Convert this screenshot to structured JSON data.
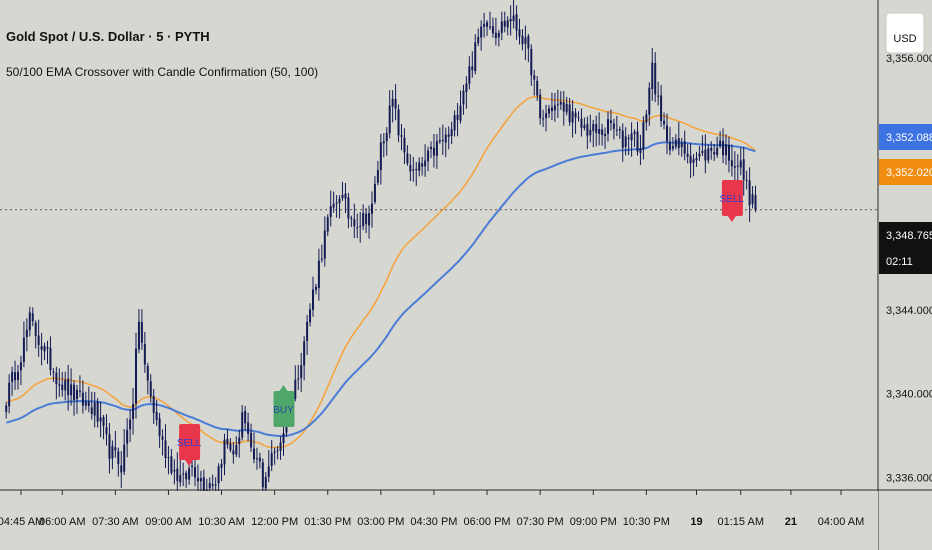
{
  "header": {
    "title": "Gold Spot / U.S. Dollar · 5 · PYTH",
    "indicator": "50/100 EMA Crossover with Candle Confirmation (50, 100)"
  },
  "currency_button": "USD",
  "colors": {
    "background": "#d7d7d2",
    "candle": "#131b54",
    "ema50": "#f5a238",
    "ema100": "#4a7cd6",
    "buy_signal": "#4fa86a",
    "sell_signal": "#e8364b",
    "last_price_tag": "#111111"
  },
  "price_tags": [
    {
      "value": "3,352.088",
      "series": "ema100",
      "color": "#3d73e0"
    },
    {
      "value": "3,352.020",
      "series": "ema50",
      "color": "#f08c10"
    },
    {
      "value": "3,348.765",
      "series": "last",
      "color": "#111111",
      "countdown": "02:11"
    }
  ],
  "chart_data": {
    "type": "candlestick",
    "symbol": "Gold Spot / U.S. Dollar",
    "interval_minutes": 5,
    "ylim": [
      3335.6,
      3358.0
    ],
    "y_ticks": [
      {
        "value": 3336.0,
        "label": "3,336.000"
      },
      {
        "value": 3340.0,
        "label": "3,340.000"
      },
      {
        "value": 3344.0,
        "label": "3,344.000"
      },
      {
        "value": 3356.0,
        "label": "3,356.000"
      }
    ],
    "x_ticks": [
      {
        "index": 5,
        "label": "04:45 AM"
      },
      {
        "index": 19,
        "label": "06:00 AM"
      },
      {
        "index": 37,
        "label": "07:30 AM"
      },
      {
        "index": 55,
        "label": "09:00 AM"
      },
      {
        "index": 73,
        "label": "10:30 AM"
      },
      {
        "index": 91,
        "label": "12:00 PM"
      },
      {
        "index": 109,
        "label": "01:30 PM"
      },
      {
        "index": 127,
        "label": "03:00 PM"
      },
      {
        "index": 145,
        "label": "04:30 PM"
      },
      {
        "index": 163,
        "label": "06:00 PM"
      },
      {
        "index": 181,
        "label": "07:30 PM"
      },
      {
        "index": 199,
        "label": "09:00 PM"
      },
      {
        "index": 217,
        "label": "10:30 PM"
      },
      {
        "index": 234,
        "label": "19",
        "bold": true
      },
      {
        "index": 249,
        "label": "01:15 AM"
      },
      {
        "index": 266,
        "label": "21",
        "bold": true
      },
      {
        "index": 283,
        "label": "04:00 AM"
      }
    ],
    "last_price": 3348.765,
    "close_path": [
      [
        0,
        3339.8
      ],
      [
        5,
        3341.9
      ],
      [
        8,
        3343.5
      ],
      [
        13,
        3342.0
      ],
      [
        18,
        3340.6
      ],
      [
        24,
        3339.8
      ],
      [
        30,
        3339.2
      ],
      [
        35,
        3337.3
      ],
      [
        39,
        3336.6
      ],
      [
        43,
        3339.8
      ],
      [
        45,
        3343.6
      ],
      [
        47,
        3341.2
      ],
      [
        50,
        3339.2
      ],
      [
        53,
        3337.6
      ],
      [
        57,
        3336.3
      ],
      [
        60,
        3335.8
      ],
      [
        63,
        3336.6
      ],
      [
        67,
        3335.7
      ],
      [
        71,
        3335.9
      ],
      [
        74,
        3337.6
      ],
      [
        78,
        3337.2
      ],
      [
        80,
        3339.2
      ],
      [
        83,
        3337.0
      ],
      [
        86,
        3336.6
      ],
      [
        87,
        3335.8
      ],
      [
        89,
        3336.6
      ],
      [
        93,
        3337.8
      ],
      [
        97,
        3339.8
      ],
      [
        100,
        3341.8
      ],
      [
        104,
        3344.8
      ],
      [
        109,
        3348.2
      ],
      [
        113,
        3349.6
      ],
      [
        116,
        3348.5
      ],
      [
        120,
        3348.2
      ],
      [
        124,
        3348.8
      ],
      [
        127,
        3351.8
      ],
      [
        131,
        3353.9
      ],
      [
        134,
        3351.9
      ],
      [
        138,
        3350.4
      ],
      [
        141,
        3350.8
      ],
      [
        146,
        3351.8
      ],
      [
        151,
        3352.4
      ],
      [
        155,
        3354.6
      ],
      [
        158,
        3355.8
      ],
      [
        162,
        3358.0
      ],
      [
        166,
        3357.3
      ],
      [
        171,
        3357.9
      ],
      [
        175,
        3357.0
      ],
      [
        178,
        3355.6
      ],
      [
        181,
        3353.0
      ],
      [
        185,
        3353.7
      ],
      [
        190,
        3353.6
      ],
      [
        193,
        3352.9
      ],
      [
        197,
        3352.6
      ],
      [
        201,
        3352.4
      ],
      [
        205,
        3352.8
      ],
      [
        209,
        3352.0
      ],
      [
        212,
        3352.6
      ],
      [
        215,
        3351.6
      ],
      [
        219,
        3355.6
      ],
      [
        222,
        3352.8
      ],
      [
        226,
        3351.8
      ],
      [
        230,
        3351.6
      ],
      [
        234,
        3351.2
      ],
      [
        238,
        3351.5
      ],
      [
        242,
        3351.9
      ],
      [
        246,
        3351.2
      ],
      [
        249,
        3350.8
      ],
      [
        252,
        3349.4
      ],
      [
        254,
        3348.8
      ]
    ],
    "series": [
      {
        "name": "50",
        "color": "#f5a238"
      },
      {
        "name": "100",
        "color": "#4a7cd6"
      }
    ],
    "signals": [
      {
        "type": "sell",
        "index": 62,
        "label": "SELL"
      },
      {
        "type": "buy",
        "index": 94,
        "label": "BUY"
      },
      {
        "type": "sell",
        "index": 246,
        "label": "SELL"
      }
    ]
  }
}
